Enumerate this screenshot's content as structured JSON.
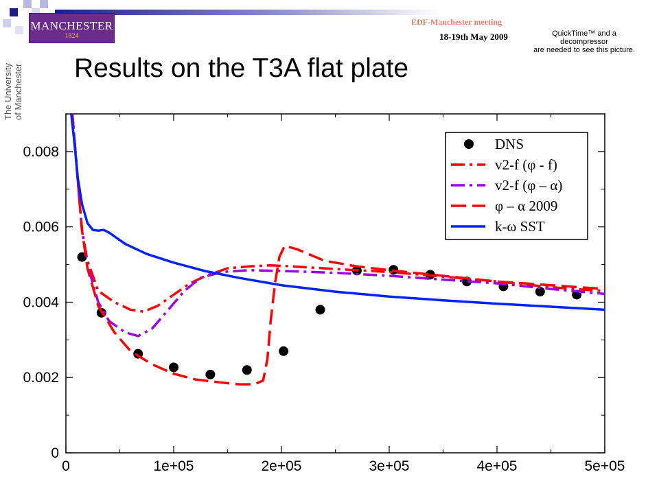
{
  "header": {
    "logo_name": "MANCHESTER",
    "logo_year": "1824",
    "meeting": "EDF-Manchester meeting",
    "date": "18-19th May 2009",
    "quicktime_lines": [
      "QuickTime™ and a",
      "decompressor",
      "are needed to see this picture."
    ],
    "university_lines": [
      "The University",
      "of Manchester"
    ]
  },
  "slide": {
    "title": "Results on the T3A flat plate"
  },
  "colors": {
    "red": "#ff0000",
    "purple": "#9a00e6",
    "blue": "#0022ff",
    "dots": "#000000"
  },
  "chart_data": {
    "type": "line",
    "title": "",
    "xlabel": "",
    "ylabel": "",
    "xlim": [
      0,
      500000
    ],
    "ylim": [
      0,
      0.009
    ],
    "grid": false,
    "legend_position": "top-right",
    "x_ticks": [
      {
        "v": 0,
        "label": "0"
      },
      {
        "v": 100000,
        "label": "1e+05"
      },
      {
        "v": 200000,
        "label": "2e+05"
      },
      {
        "v": 300000,
        "label": "3e+05"
      },
      {
        "v": 400000,
        "label": "4e+05"
      },
      {
        "v": 500000,
        "label": "5e+05"
      }
    ],
    "y_ticks": [
      {
        "v": 0,
        "label": "0"
      },
      {
        "v": 0.002,
        "label": "0.002"
      },
      {
        "v": 0.004,
        "label": "0.004"
      },
      {
        "v": 0.006,
        "label": "0.006"
      },
      {
        "v": 0.008,
        "label": "0.008"
      }
    ],
    "series": [
      {
        "name": "DNS",
        "style": "points",
        "color": "#000000",
        "points": [
          [
            15000,
            0.0052
          ],
          [
            33000,
            0.00372
          ],
          [
            67000,
            0.00263
          ],
          [
            100000,
            0.00227
          ],
          [
            134000,
            0.00208
          ],
          [
            168000,
            0.0022
          ],
          [
            202000,
            0.0027
          ],
          [
            236000,
            0.0038
          ],
          [
            270000,
            0.00484
          ],
          [
            304000,
            0.00486
          ],
          [
            338000,
            0.00473
          ],
          [
            372000,
            0.00455
          ],
          [
            406000,
            0.00442
          ],
          [
            440000,
            0.00428
          ],
          [
            474000,
            0.0042
          ]
        ]
      },
      {
        "name": "v2-f (φ - f)",
        "style": "dash-dot",
        "color": "#ff0000",
        "points": [
          [
            6000,
            0.009
          ],
          [
            8000,
            0.0083
          ],
          [
            10000,
            0.0076
          ],
          [
            12000,
            0.0069
          ],
          [
            15000,
            0.0059
          ],
          [
            20000,
            0.0051
          ],
          [
            30000,
            0.0043
          ],
          [
            45000,
            0.004
          ],
          [
            60000,
            0.0038
          ],
          [
            72000,
            0.00375
          ],
          [
            85000,
            0.0039
          ],
          [
            100000,
            0.0042
          ],
          [
            115000,
            0.0045
          ],
          [
            130000,
            0.0047
          ],
          [
            150000,
            0.0049
          ],
          [
            170000,
            0.00495
          ],
          [
            190000,
            0.00498
          ],
          [
            210000,
            0.00495
          ],
          [
            250000,
            0.00488
          ],
          [
            300000,
            0.0048
          ],
          [
            350000,
            0.00468
          ],
          [
            400000,
            0.00455
          ],
          [
            450000,
            0.0044
          ],
          [
            480000,
            0.00433
          ],
          [
            500000,
            0.0043
          ]
        ]
      },
      {
        "name": "v2-f (φ – α)",
        "style": "dash-dot",
        "color": "#9a00e6",
        "points": [
          [
            6000,
            0.009
          ],
          [
            8000,
            0.0083
          ],
          [
            10000,
            0.0076
          ],
          [
            12000,
            0.0069
          ],
          [
            15000,
            0.0059
          ],
          [
            20000,
            0.005
          ],
          [
            30000,
            0.004
          ],
          [
            40000,
            0.0035
          ],
          [
            55000,
            0.0032
          ],
          [
            67000,
            0.0031
          ],
          [
            80000,
            0.0033
          ],
          [
            95000,
            0.0038
          ],
          [
            110000,
            0.0043
          ],
          [
            125000,
            0.00465
          ],
          [
            145000,
            0.0048
          ],
          [
            170000,
            0.00485
          ],
          [
            200000,
            0.00483
          ],
          [
            250000,
            0.00478
          ],
          [
            300000,
            0.0047
          ],
          [
            350000,
            0.0046
          ],
          [
            400000,
            0.0045
          ],
          [
            450000,
            0.00435
          ],
          [
            500000,
            0.00422
          ]
        ]
      },
      {
        "name": "φ – α 2009",
        "style": "dashed",
        "color": "#ff0000",
        "points": [
          [
            6000,
            0.009
          ],
          [
            8000,
            0.0083
          ],
          [
            10000,
            0.0076
          ],
          [
            12000,
            0.0069
          ],
          [
            15000,
            0.0059
          ],
          [
            20000,
            0.0049
          ],
          [
            30000,
            0.0039
          ],
          [
            45000,
            0.0032
          ],
          [
            60000,
            0.0027
          ],
          [
            80000,
            0.00235
          ],
          [
            100000,
            0.0021
          ],
          [
            120000,
            0.00195
          ],
          [
            140000,
            0.00188
          ],
          [
            160000,
            0.00182
          ],
          [
            175000,
            0.00182
          ],
          [
            183000,
            0.00192
          ],
          [
            187000,
            0.0025
          ],
          [
            190000,
            0.0035
          ],
          [
            194000,
            0.0045
          ],
          [
            198000,
            0.0052
          ],
          [
            203000,
            0.0055
          ],
          [
            215000,
            0.0054
          ],
          [
            240000,
            0.0051
          ],
          [
            270000,
            0.00495
          ],
          [
            300000,
            0.00485
          ],
          [
            350000,
            0.0047
          ],
          [
            400000,
            0.00455
          ],
          [
            450000,
            0.00445
          ],
          [
            500000,
            0.00435
          ]
        ]
      },
      {
        "name": "k-ω SST",
        "style": "solid",
        "color": "#0022ff",
        "points": [
          [
            5000,
            0.009
          ],
          [
            8000,
            0.0082
          ],
          [
            11000,
            0.0073
          ],
          [
            15000,
            0.0066
          ],
          [
            20000,
            0.0061
          ],
          [
            25000,
            0.00592
          ],
          [
            30000,
            0.0059
          ],
          [
            35000,
            0.00592
          ],
          [
            40000,
            0.00585
          ],
          [
            55000,
            0.00555
          ],
          [
            75000,
            0.00528
          ],
          [
            100000,
            0.00505
          ],
          [
            130000,
            0.00482
          ],
          [
            160000,
            0.00465
          ],
          [
            200000,
            0.00445
          ],
          [
            250000,
            0.00428
          ],
          [
            300000,
            0.00415
          ],
          [
            350000,
            0.00405
          ],
          [
            400000,
            0.00396
          ],
          [
            450000,
            0.00388
          ],
          [
            500000,
            0.0038
          ]
        ]
      }
    ]
  }
}
